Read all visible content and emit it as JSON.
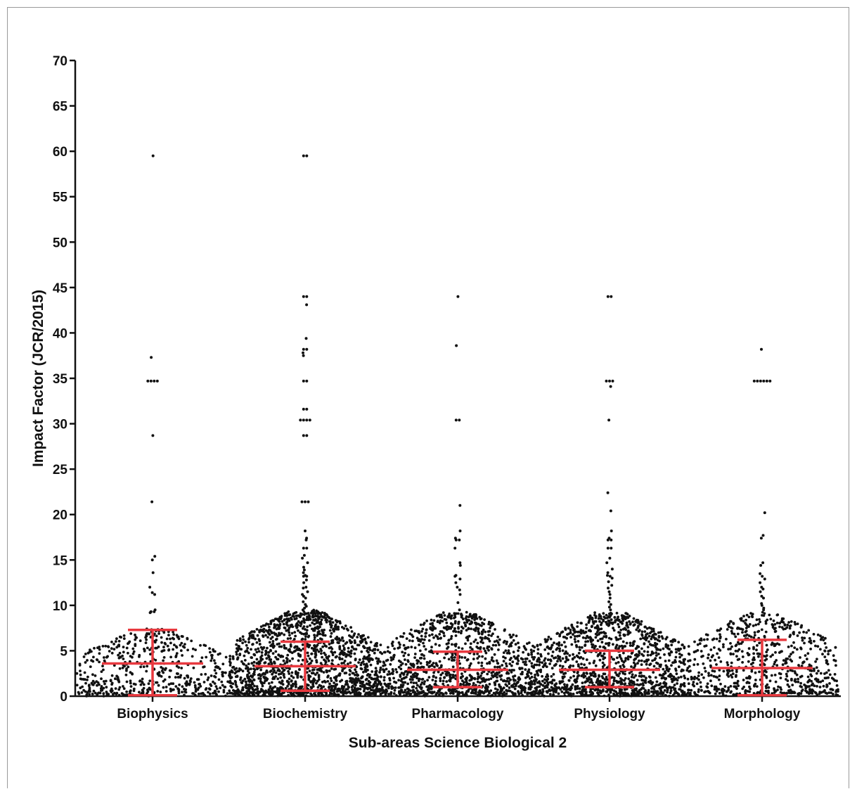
{
  "chart_data": {
    "type": "scatter",
    "subtype": "beeswarm dot plot with mean ± SD error bars",
    "xlabel": "Sub-areas Science Biological 2",
    "ylabel": "Impact Factor (JCR/2015)",
    "ylim": [
      0,
      70
    ],
    "yticks": [
      0,
      5,
      10,
      15,
      20,
      25,
      30,
      35,
      40,
      45,
      50,
      55,
      60,
      65,
      70
    ],
    "grid": false,
    "legend": "none",
    "colors": {
      "points": "#111111",
      "error_bars": "#e8393f",
      "axes": "#111111"
    },
    "categories": [
      "Biophysics",
      "Biochemistry",
      "Pharmacology",
      "Physiology",
      "Morphology"
    ],
    "series": [
      {
        "category": "Biophysics",
        "mean": 3.6,
        "sd_low": 0.1,
        "sd_high": 7.3,
        "outliers": [
          59.5,
          37.3,
          34.7,
          34.7,
          34.7,
          34.7,
          28.7,
          21.4,
          15.4,
          15.0,
          13.6,
          12.0,
          11.4,
          11.2,
          9.5,
          9.3,
          9.3,
          9.2
        ],
        "bulk_max": 7.5,
        "bulk_count": 520
      },
      {
        "category": "Biochemistry",
        "mean": 3.3,
        "sd_low": 0.6,
        "sd_high": 6.0,
        "outliers": [
          59.5,
          59.5,
          44.0,
          44.0,
          43.1,
          39.4,
          38.2,
          38.2,
          37.8,
          37.5,
          34.7,
          34.7,
          31.6,
          31.6,
          30.4,
          30.4,
          30.4,
          30.4,
          28.7,
          28.7,
          21.4,
          21.4,
          21.4,
          18.2,
          17.4,
          17.2,
          16.3,
          16.3,
          15.5,
          15.2,
          14.7,
          14.2,
          13.9,
          13.6,
          13.3,
          13.2,
          13.2,
          12.8,
          12.5,
          12.0,
          11.9,
          11.5,
          11.2,
          11.0,
          10.8,
          10.4,
          10.1,
          9.9,
          9.7,
          9.5
        ],
        "bulk_max": 9.6,
        "bulk_count": 1500
      },
      {
        "category": "Pharmacology",
        "mean": 2.9,
        "sd_low": 1.0,
        "sd_high": 4.9,
        "outliers": [
          44.0,
          38.6,
          30.4,
          30.4,
          21.0,
          18.2,
          17.4,
          17.2,
          17.2,
          16.3,
          14.7,
          14.4,
          13.3,
          13.2,
          12.9,
          12.5,
          12.0,
          11.7,
          11.2,
          10.3,
          9.5
        ],
        "bulk_max": 9.4,
        "bulk_count": 1100
      },
      {
        "category": "Physiology",
        "mean": 2.9,
        "sd_low": 1.0,
        "sd_high": 5.0,
        "outliers": [
          44.0,
          44.0,
          34.7,
          34.7,
          34.7,
          34.1,
          30.4,
          22.4,
          20.4,
          18.2,
          17.4,
          17.2,
          17.2,
          16.3,
          16.3,
          15.2,
          14.7,
          14.0,
          13.6,
          13.3,
          13.2,
          13.0,
          12.6,
          12.2,
          11.9,
          11.5,
          11.2,
          10.8,
          10.4,
          10.1,
          9.8,
          9.5
        ],
        "bulk_max": 9.4,
        "bulk_count": 1250
      },
      {
        "category": "Morphology",
        "mean": 3.1,
        "sd_low": 0.1,
        "sd_high": 6.2,
        "outliers": [
          38.2,
          34.7,
          34.7,
          34.7,
          34.7,
          34.7,
          34.7,
          20.2,
          17.7,
          17.4,
          14.7,
          14.4,
          13.5,
          13.2,
          12.9,
          12.5,
          12.0,
          11.8,
          11.5,
          11.0,
          10.8,
          10.2,
          10.0,
          9.7,
          9.5
        ],
        "bulk_max": 9.4,
        "bulk_count": 700
      }
    ]
  }
}
